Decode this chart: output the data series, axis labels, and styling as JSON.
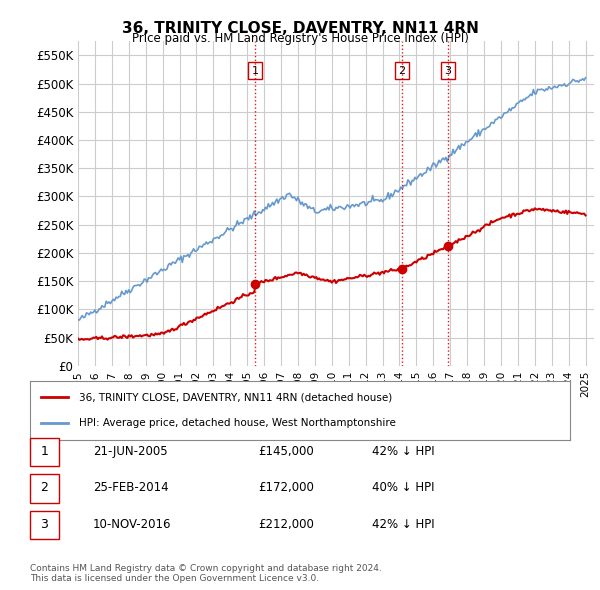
{
  "title": "36, TRINITY CLOSE, DAVENTRY, NN11 4RN",
  "subtitle": "Price paid vs. HM Land Registry's House Price Index (HPI)",
  "ylabel_ticks": [
    "£0",
    "£50K",
    "£100K",
    "£150K",
    "£200K",
    "£250K",
    "£300K",
    "£350K",
    "£400K",
    "£450K",
    "£500K",
    "£550K"
  ],
  "ytick_values": [
    0,
    50000,
    100000,
    150000,
    200000,
    250000,
    300000,
    350000,
    400000,
    450000,
    500000,
    550000
  ],
  "ylim": [
    0,
    575000
  ],
  "xlim_start": 1995.0,
  "xlim_end": 2025.5,
  "transactions": [
    {
      "date": 2005.47,
      "price": 145000,
      "label": "1"
    },
    {
      "date": 2014.15,
      "price": 172000,
      "label": "2"
    },
    {
      "date": 2016.87,
      "price": 212000,
      "label": "3"
    }
  ],
  "vline_color": "#dd0000",
  "vline_style": ":",
  "transaction_marker_color": "#cc0000",
  "hpi_line_color": "#6699cc",
  "price_line_color": "#cc0000",
  "legend_label_price": "36, TRINITY CLOSE, DAVENTRY, NN11 4RN (detached house)",
  "legend_label_hpi": "HPI: Average price, detached house, West Northamptonshire",
  "table_rows": [
    {
      "num": "1",
      "date": "21-JUN-2005",
      "price": "£145,000",
      "pct": "42% ↓ HPI"
    },
    {
      "num": "2",
      "date": "25-FEB-2014",
      "price": "£172,000",
      "pct": "40% ↓ HPI"
    },
    {
      "num": "3",
      "date": "10-NOV-2016",
      "price": "£212,000",
      "pct": "42% ↓ HPI"
    }
  ],
  "footnote": "Contains HM Land Registry data © Crown copyright and database right 2024.\nThis data is licensed under the Open Government Licence v3.0.",
  "background_color": "#ffffff",
  "grid_color": "#cccccc",
  "xtick_years": [
    1995,
    1996,
    1997,
    1998,
    1999,
    2000,
    2001,
    2002,
    2003,
    2004,
    2005,
    2006,
    2007,
    2008,
    2009,
    2010,
    2011,
    2012,
    2013,
    2014,
    2015,
    2016,
    2017,
    2018,
    2019,
    2020,
    2021,
    2022,
    2023,
    2024,
    2025
  ]
}
